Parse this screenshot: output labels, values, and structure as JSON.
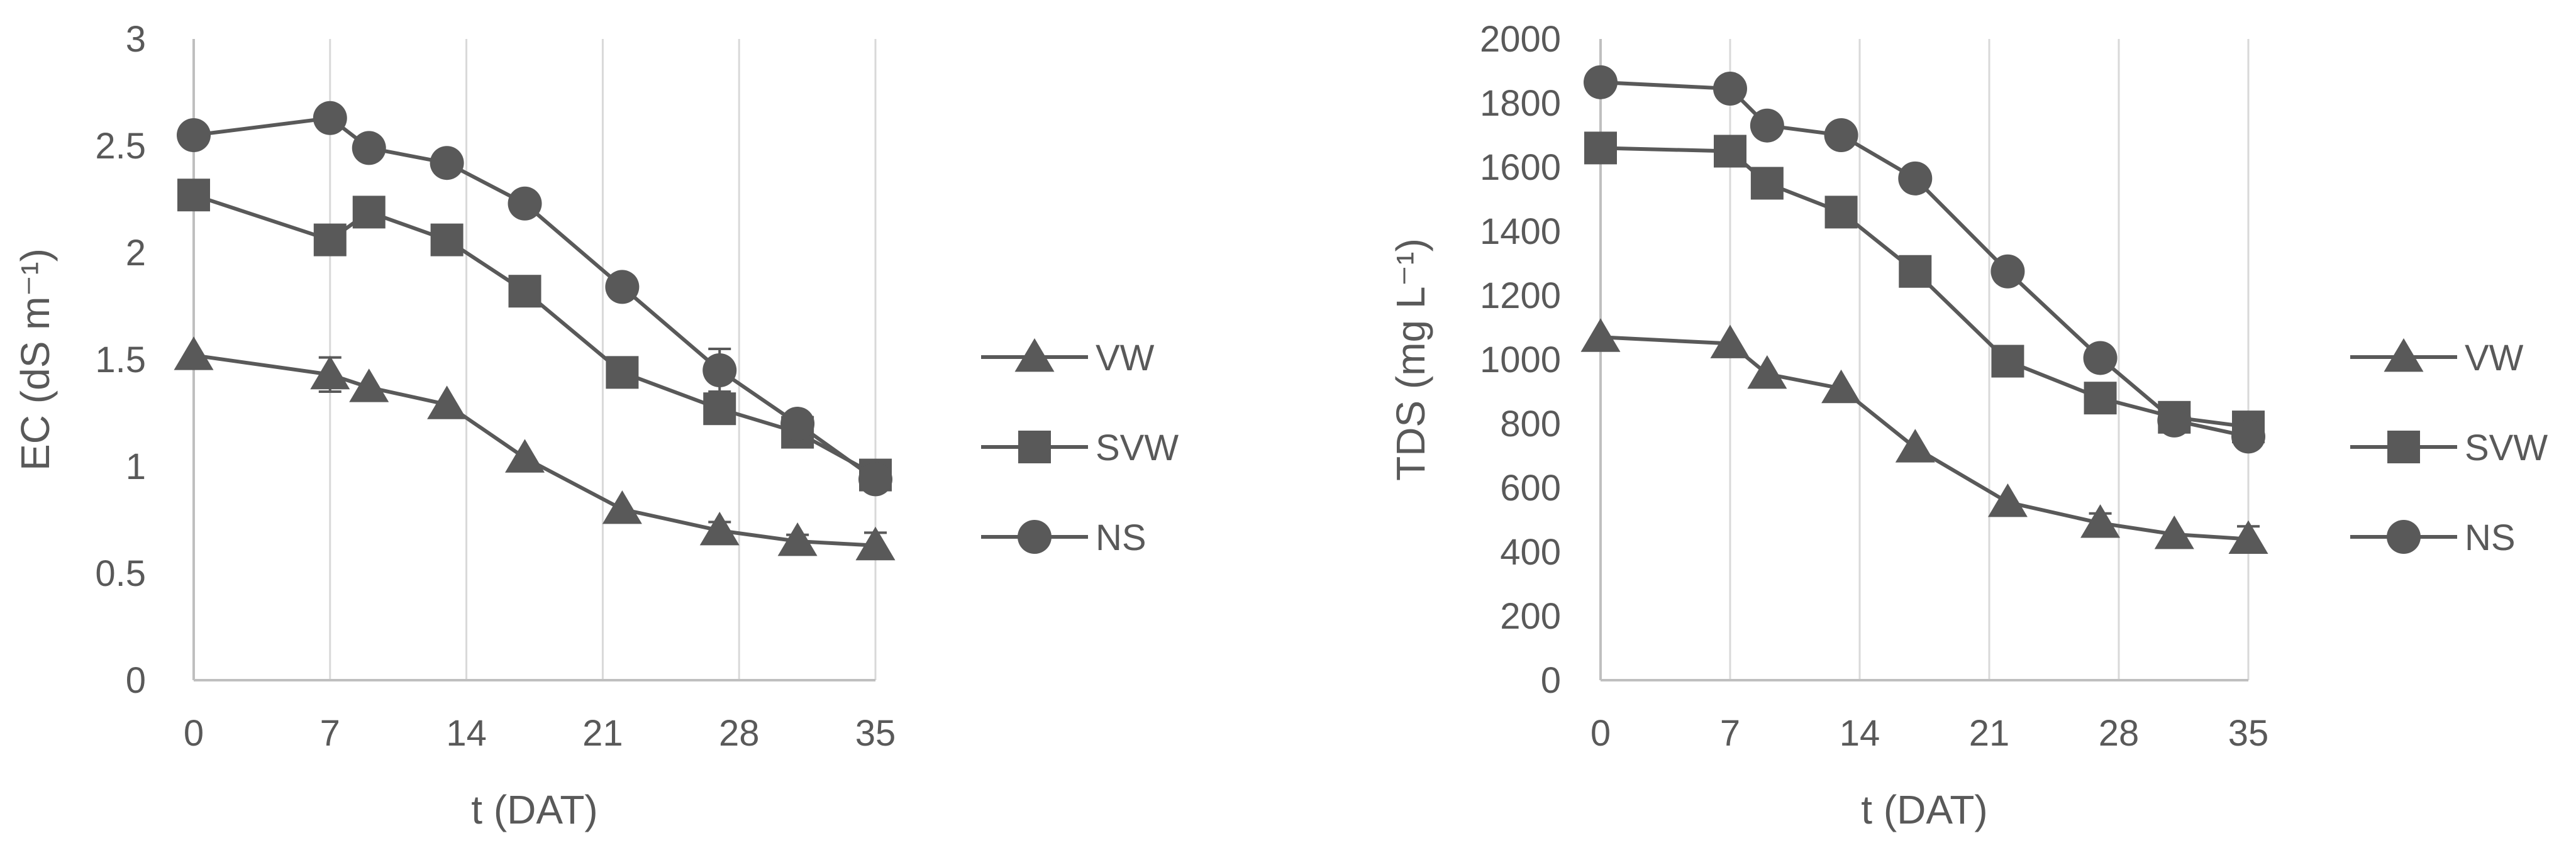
{
  "colors": {
    "series": "#595959",
    "grid": "#d9d9d9",
    "axis": "#bfbfbf",
    "text": "#595959"
  },
  "chart_data": [
    {
      "type": "line",
      "xlabel": "t (DAT)",
      "ylabel": "EC (dS m⁻¹)",
      "xlim": [
        0,
        35
      ],
      "ylim": [
        0,
        3
      ],
      "xticks": [
        0,
        7,
        14,
        21,
        28,
        35
      ],
      "xtick_labels": [
        "0",
        "7",
        "14",
        "21",
        "28",
        "35"
      ],
      "yticks": [
        0,
        0.5,
        1,
        1.5,
        2,
        2.5,
        3
      ],
      "ytick_labels": [
        "0",
        "0.5",
        "1",
        "1.5",
        "2",
        "2.5",
        "3"
      ],
      "grid": "vertical",
      "legend_position": "right",
      "x": [
        0,
        7,
        9,
        13,
        17,
        22,
        27,
        31,
        35
      ],
      "series": [
        {
          "name": "VW",
          "marker": "triangle",
          "values": [
            1.52,
            1.43,
            1.37,
            1.29,
            1.04,
            0.8,
            0.7,
            0.65,
            0.63
          ],
          "errors": [
            0,
            0.08,
            0,
            0,
            0,
            0,
            0.04,
            0.03,
            0.06
          ]
        },
        {
          "name": "SVW",
          "marker": "square",
          "values": [
            2.27,
            2.06,
            2.19,
            2.06,
            1.82,
            1.44,
            1.27,
            1.16,
            0.96
          ],
          "errors": [
            0,
            0,
            0,
            0,
            0,
            0,
            0,
            0.04,
            0
          ]
        },
        {
          "name": "NS",
          "marker": "circle",
          "values": [
            2.55,
            2.63,
            2.49,
            2.42,
            2.23,
            1.84,
            1.45,
            1.2,
            0.94
          ],
          "errors": [
            0,
            0,
            0,
            0,
            0,
            0.04,
            0.1,
            0,
            0
          ]
        }
      ]
    },
    {
      "type": "line",
      "xlabel": "t (DAT)",
      "ylabel": "TDS (mg L⁻¹)",
      "xlim": [
        0,
        35
      ],
      "ylim": [
        0,
        2000
      ],
      "xticks": [
        0,
        7,
        14,
        21,
        28,
        35
      ],
      "xtick_labels": [
        "0",
        "7",
        "14",
        "21",
        "28",
        "35"
      ],
      "yticks": [
        0,
        200,
        400,
        600,
        800,
        1000,
        1200,
        1400,
        1600,
        1800,
        2000
      ],
      "ytick_labels": [
        "0",
        "200",
        "400",
        "600",
        "800",
        "1000",
        "1200",
        "1400",
        "1600",
        "1800",
        "2000"
      ],
      "grid": "vertical",
      "legend_position": "right",
      "x": [
        0,
        7,
        9,
        13,
        17,
        22,
        27,
        31,
        35
      ],
      "series": [
        {
          "name": "VW",
          "marker": "triangle",
          "values": [
            1070,
            1050,
            955,
            910,
            725,
            555,
            490,
            455,
            440
          ],
          "errors": [
            0,
            0,
            0,
            0,
            0,
            0,
            30,
            0,
            40
          ]
        },
        {
          "name": "SVW",
          "marker": "square",
          "values": [
            1660,
            1650,
            1550,
            1460,
            1275,
            995,
            880,
            820,
            790
          ],
          "errors": [
            0,
            0,
            0,
            0,
            0,
            0,
            0,
            0,
            0
          ]
        },
        {
          "name": "NS",
          "marker": "circle",
          "values": [
            1865,
            1845,
            1730,
            1700,
            1565,
            1275,
            1005,
            810,
            760
          ],
          "errors": [
            0,
            0,
            0,
            0,
            0,
            0,
            0,
            0,
            0
          ]
        }
      ]
    }
  ]
}
